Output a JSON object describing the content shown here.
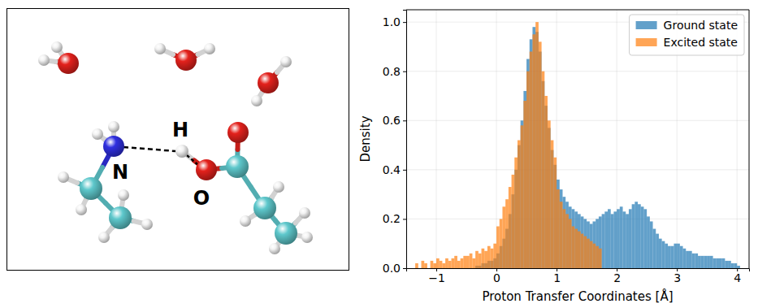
{
  "diagram": {
    "atom_labels": [
      "N",
      "H",
      "O"
    ]
  },
  "chart_data": {
    "type": "histogram",
    "x_label": "Proton Transfer Coordinates [Å]",
    "y_label": "Density",
    "xlim": [
      -1.5,
      4.2
    ],
    "ylim": [
      0,
      1.05
    ],
    "xticks": [
      {
        "value": -1,
        "label": "−1"
      },
      0,
      1,
      2,
      3,
      4
    ],
    "yticks": [
      {
        "value": 0,
        "label": "0.0"
      },
      0.2,
      0.4,
      0.6,
      0.8,
      {
        "value": 1,
        "label": "1.0"
      }
    ],
    "grid": true,
    "legend": "upper right",
    "bins": [
      -1.35,
      -1.3,
      -1.25,
      -1.2,
      -1.15,
      -1.1,
      -1.05,
      -1.0,
      -0.95,
      -0.9,
      -0.85,
      -0.8,
      -0.75,
      -0.7,
      -0.65,
      -0.6,
      -0.55,
      -0.5,
      -0.45,
      -0.4,
      -0.35,
      -0.3,
      -0.25,
      -0.2,
      -0.15,
      -0.1,
      -0.05,
      0.0,
      0.05,
      0.1,
      0.15,
      0.2,
      0.25,
      0.3,
      0.35,
      0.4,
      0.45,
      0.5,
      0.55,
      0.6,
      0.65,
      0.7,
      0.75,
      0.8,
      0.85,
      0.9,
      0.95,
      1.0,
      1.05,
      1.1,
      1.15,
      1.2,
      1.25,
      1.3,
      1.35,
      1.4,
      1.45,
      1.5,
      1.55,
      1.6,
      1.65,
      1.7,
      1.75,
      1.8,
      1.85,
      1.9,
      1.95,
      2.0,
      2.05,
      2.1,
      2.15,
      2.2,
      2.25,
      2.3,
      2.35,
      2.4,
      2.45,
      2.5,
      2.55,
      2.6,
      2.65,
      2.7,
      2.75,
      2.8,
      2.85,
      2.9,
      2.95,
      3.0,
      3.05,
      3.1,
      3.15,
      3.2,
      3.25,
      3.3,
      3.35,
      3.4,
      3.45,
      3.5,
      3.55,
      3.6,
      3.65,
      3.7,
      3.75,
      3.8,
      3.85,
      3.9,
      3.95,
      4.0,
      4.05
    ],
    "series": [
      {
        "name": "Ground state",
        "color": "#1f77b4",
        "values": [
          0,
          0,
          0,
          0,
          0,
          0,
          0,
          0,
          0,
          0,
          0,
          0,
          0,
          0,
          0,
          0,
          0,
          0,
          0,
          0,
          0.01,
          0.01,
          0.02,
          0.02,
          0.03,
          0.03,
          0.04,
          0.06,
          0.09,
          0.12,
          0.16,
          0.22,
          0.3,
          0.4,
          0.5,
          0.6,
          0.72,
          0.85,
          0.93,
          0.98,
          0.96,
          0.88,
          0.76,
          0.66,
          0.57,
          0.48,
          0.42,
          0.36,
          0.32,
          0.29,
          0.27,
          0.25,
          0.24,
          0.23,
          0.22,
          0.21,
          0.2,
          0.19,
          0.18,
          0.19,
          0.2,
          0.21,
          0.22,
          0.23,
          0.24,
          0.22,
          0.23,
          0.24,
          0.25,
          0.23,
          0.22,
          0.24,
          0.26,
          0.27,
          0.26,
          0.25,
          0.24,
          0.21,
          0.19,
          0.16,
          0.14,
          0.12,
          0.11,
          0.1,
          0.09,
          0.09,
          0.1,
          0.1,
          0.09,
          0.08,
          0.07,
          0.07,
          0.06,
          0.06,
          0.05,
          0.05,
          0.05,
          0.05,
          0.05,
          0.04,
          0.04,
          0.04,
          0.04,
          0.03,
          0.03,
          0.02,
          0.02,
          0.01
        ]
      },
      {
        "name": "Excited state",
        "color": "#ff7f0e",
        "values": [
          0.02,
          0,
          0.03,
          0.02,
          0,
          0.03,
          0.02,
          0.04,
          0.03,
          0.02,
          0.04,
          0.03,
          0.04,
          0.05,
          0.03,
          0.04,
          0.05,
          0.05,
          0.06,
          0.04,
          0.07,
          0.06,
          0.08,
          0.07,
          0.09,
          0.08,
          0.1,
          0.17,
          0.2,
          0.25,
          0.28,
          0.33,
          0.38,
          0.45,
          0.52,
          0.58,
          0.68,
          0.8,
          0.88,
          0.95,
          1.0,
          0.92,
          0.8,
          0.7,
          0.6,
          0.52,
          0.45,
          0.32,
          0.27,
          0.24,
          0.22,
          0.2,
          0.17,
          0.16,
          0.15,
          0.14,
          0.13,
          0.12,
          0.11,
          0.1,
          0.09,
          0.08,
          0,
          0,
          0,
          0,
          0,
          0,
          0,
          0,
          0,
          0,
          0,
          0,
          0,
          0,
          0,
          0,
          0,
          0,
          0,
          0,
          0,
          0,
          0,
          0,
          0,
          0,
          0,
          0,
          0,
          0,
          0,
          0,
          0,
          0,
          0,
          0,
          0,
          0,
          0,
          0,
          0,
          0,
          0,
          0,
          0,
          0
        ]
      }
    ]
  }
}
